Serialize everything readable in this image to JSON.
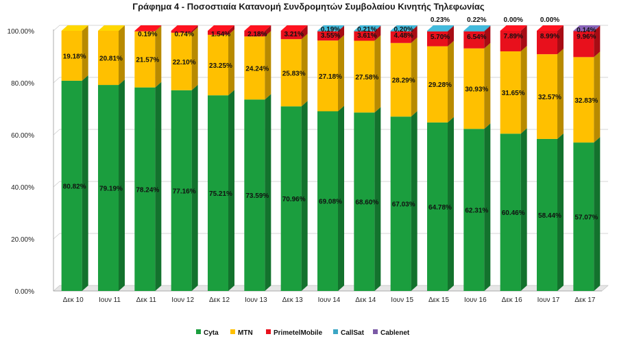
{
  "chart_data": {
    "type": "bar",
    "stacked": true,
    "percent": true,
    "title": "Γράφημα 4 - Ποσοστιαία Κατανομή Συνδρομητών Συμβολαίου Κινητής Τηλεφωνίας",
    "xlabel": "",
    "ylabel": "",
    "ylim": [
      0,
      100
    ],
    "yticks": [
      "0.00%",
      "20.00%",
      "40.00%",
      "60.00%",
      "80.00%",
      "100.00%"
    ],
    "grid": true,
    "legend_position": "bottom",
    "categories": [
      "Δεκ 10",
      "Ιουν 11",
      "Δεκ 11",
      "Ιουν 12",
      "Δεκ 12",
      "Ιουν 13",
      "Δεκ 13",
      "Ιουν 14",
      "Δεκ 14",
      "Ιουν 15",
      "Δεκ 15",
      "Ιουν 16",
      "Δεκ 16",
      "Ιουν 17",
      "Δεκ 17"
    ],
    "series": [
      {
        "name": "Cyta",
        "color": "#1b9e3e",
        "values": [
          80.82,
          79.19,
          78.24,
          77.16,
          75.21,
          73.59,
          70.96,
          69.08,
          68.6,
          67.03,
          64.78,
          62.31,
          60.46,
          58.44,
          57.07
        ],
        "labels": [
          "80.82%",
          "79.19%",
          "78.24%",
          "77.16%",
          "75.21%",
          "73.59%",
          "70.96%",
          "69.08%",
          "68.60%",
          "67.03%",
          "64.78%",
          "62.31%",
          "60.46%",
          "58.44%",
          "57.07%"
        ]
      },
      {
        "name": "MTN",
        "color": "#ffc000",
        "values": [
          19.18,
          20.81,
          21.57,
          22.1,
          23.25,
          24.24,
          25.83,
          27.18,
          27.58,
          28.29,
          29.28,
          30.93,
          31.65,
          32.57,
          32.83
        ],
        "labels": [
          "19.18%",
          "20.81%",
          "21.57%",
          "22.10%",
          "23.25%",
          "24.24%",
          "25.83%",
          "27.18%",
          "27.58%",
          "28.29%",
          "29.28%",
          "30.93%",
          "31.65%",
          "32.57%",
          "32.83%"
        ]
      },
      {
        "name": "PrimetelMobile",
        "color": "#e8101c",
        "values": [
          0,
          0,
          0.19,
          0.74,
          1.54,
          2.18,
          3.21,
          3.55,
          3.61,
          4.48,
          5.7,
          6.54,
          7.89,
          8.99,
          9.96
        ],
        "labels": [
          "",
          "",
          "0.19%",
          "0.74%",
          "1.54%",
          "2.18%",
          "3.21%",
          "3.55%",
          "3.61%",
          "4.48%",
          "5.70%",
          "6.54%",
          "7.89%",
          "8.99%",
          "9.96%"
        ]
      },
      {
        "name": "CallSat",
        "color": "#3ca6c4",
        "values": [
          0,
          0,
          0,
          0,
          0,
          0,
          0,
          0.19,
          0.21,
          0.2,
          0.23,
          0.22,
          0.0,
          0.0,
          0
        ],
        "labels": [
          "",
          "",
          "",
          "",
          "",
          "",
          "",
          "0.19%",
          "0.21%",
          "0.20%",
          "0.23%",
          "0.22%",
          "0.00%",
          "0.00%",
          ""
        ]
      },
      {
        "name": "Cablenet",
        "color": "#7b5aa6",
        "values": [
          0,
          0,
          0,
          0,
          0,
          0,
          0,
          0,
          0,
          0,
          0,
          0,
          0,
          0,
          0.14
        ],
        "labels": [
          "",
          "",
          "",
          "",
          "",
          "",
          "",
          "",
          "",
          "",
          "",
          "",
          "",
          "",
          "0.14%"
        ]
      }
    ]
  }
}
